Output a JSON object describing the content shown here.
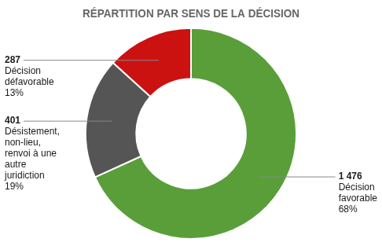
{
  "chart_data": {
    "type": "doughnut",
    "title": "RÉPARTITION PAR SENS DE LA DÉCISION",
    "categories": [
      "Décision\nfavorable",
      "Désistement,\nnon-lieu,\nrenvoi à une\nautre\njuridiction",
      "Décision\ndéfavorable"
    ],
    "values": [
      1476,
      401,
      287
    ],
    "value_labels": [
      "1 476",
      "401",
      "287"
    ],
    "data_labels": true,
    "percentages": [
      68,
      19,
      13
    ],
    "percentage_labels": [
      "68%",
      "19%",
      "13%"
    ],
    "colors": [
      "#5a9e3a",
      "#555555",
      "#cc1111"
    ],
    "legend": false
  }
}
